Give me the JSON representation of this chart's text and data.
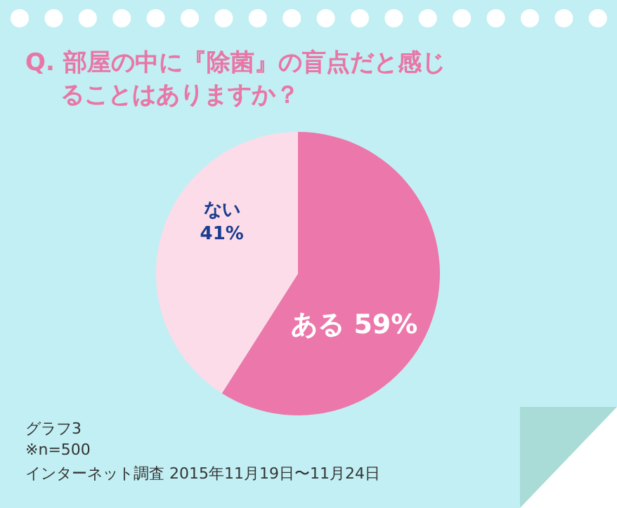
{
  "chart_data": {
    "type": "pie",
    "title": "Q. 部屋の中に『除菌』の盲点だと感じることはありますか？",
    "categories": [
      "ある",
      "ない"
    ],
    "values": [
      59,
      41
    ],
    "value_labels": [
      "59%",
      "41%"
    ],
    "colors": [
      "#ec77aa",
      "#fcdce8"
    ],
    "annotations": [
      "グラフ3",
      "※n=500",
      "インターネット調査  2015年11月19日〜11月24日"
    ]
  }
}
